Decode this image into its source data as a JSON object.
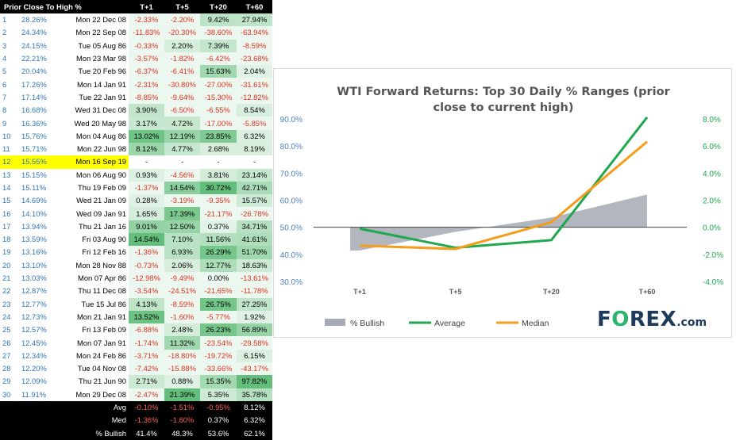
{
  "table": {
    "headers": [
      "Prior Close To High %",
      "T+1",
      "T+5",
      "T+20",
      "T+60"
    ],
    "highlight_row": 12,
    "rows": [
      {
        "n": "1",
        "pct": "28.26%",
        "date": "Mon 22 Dec 08",
        "t1": "-2.33%",
        "t5": "-2.20%",
        "t20": "9.42%",
        "t60": "27.94%"
      },
      {
        "n": "2",
        "pct": "24.34%",
        "date": "Mon 22 Sep 08",
        "t1": "-11.83%",
        "t5": "-20.30%",
        "t20": "-38.60%",
        "t60": "-63.94%"
      },
      {
        "n": "3",
        "pct": "24.15%",
        "date": "Tue 05 Aug 86",
        "t1": "-0.33%",
        "t5": "2.20%",
        "t20": "7.39%",
        "t60": "-8.59%"
      },
      {
        "n": "4",
        "pct": "22.21%",
        "date": "Mon 23 Mar 98",
        "t1": "-3.57%",
        "t5": "-1.82%",
        "t20": "-6.42%",
        "t60": "-23.68%"
      },
      {
        "n": "5",
        "pct": "20.04%",
        "date": "Tue 20 Feb 96",
        "t1": "-6.37%",
        "t5": "-6.41%",
        "t20": "15.63%",
        "t60": "2.04%"
      },
      {
        "n": "6",
        "pct": "17.26%",
        "date": "Mon 14 Jan 91",
        "t1": "-2.31%",
        "t5": "-30.80%",
        "t20": "-27.00%",
        "t60": "-31.61%"
      },
      {
        "n": "7",
        "pct": "17.14%",
        "date": "Tue 22 Jan 91",
        "t1": "-8.85%",
        "t5": "-9.64%",
        "t20": "-15.30%",
        "t60": "-12.82%"
      },
      {
        "n": "8",
        "pct": "16.68%",
        "date": "Wed 31 Dec 08",
        "t1": "3.90%",
        "t5": "-6.50%",
        "t20": "-6.55%",
        "t60": "8.54%"
      },
      {
        "n": "9",
        "pct": "16.36%",
        "date": "Wed 20 May 98",
        "t1": "3.17%",
        "t5": "4.72%",
        "t20": "-17.00%",
        "t60": "-5.85%"
      },
      {
        "n": "10",
        "pct": "15.76%",
        "date": "Mon 04 Aug 86",
        "t1": "13.02%",
        "t5": "12.19%",
        "t20": "23.85%",
        "t60": "6.32%"
      },
      {
        "n": "11",
        "pct": "15.71%",
        "date": "Mon 22 Jun 98",
        "t1": "8.12%",
        "t5": "4.77%",
        "t20": "2.68%",
        "t60": "8.19%"
      },
      {
        "n": "12",
        "pct": "15.55%",
        "date": "Mon 16 Sep 19",
        "t1": "-",
        "t5": "-",
        "t20": "-",
        "t60": "-"
      },
      {
        "n": "13",
        "pct": "15.15%",
        "date": "Mon 06 Aug 90",
        "t1": "0.93%",
        "t5": "-4.56%",
        "t20": "3.81%",
        "t60": "23.14%"
      },
      {
        "n": "14",
        "pct": "15.11%",
        "date": "Thu 19 Feb 09",
        "t1": "-1.37%",
        "t5": "14.54%",
        "t20": "30.72%",
        "t60": "42.71%"
      },
      {
        "n": "15",
        "pct": "14.69%",
        "date": "Wed 21 Jan 09",
        "t1": "0.28%",
        "t5": "-3.19%",
        "t20": "-9.35%",
        "t60": "15.57%"
      },
      {
        "n": "16",
        "pct": "14.10%",
        "date": "Wed 09 Jan 91",
        "t1": "1.65%",
        "t5": "17.39%",
        "t20": "-21.17%",
        "t60": "-26.78%"
      },
      {
        "n": "17",
        "pct": "13.94%",
        "date": "Thu 21 Jan 16",
        "t1": "9.01%",
        "t5": "12.50%",
        "t20": "0.37%",
        "t60": "34.71%"
      },
      {
        "n": "18",
        "pct": "13.59%",
        "date": "Fri 03 Aug 90",
        "t1": "14.54%",
        "t5": "7.10%",
        "t20": "11.56%",
        "t60": "41.61%"
      },
      {
        "n": "19",
        "pct": "13.16%",
        "date": "Fri 12 Feb 16",
        "t1": "-1.36%",
        "t5": "6.93%",
        "t20": "26.29%",
        "t60": "51.70%"
      },
      {
        "n": "20",
        "pct": "13.10%",
        "date": "Mon 28 Nov 88",
        "t1": "-0.73%",
        "t5": "2.06%",
        "t20": "12.77%",
        "t60": "18.63%"
      },
      {
        "n": "21",
        "pct": "13.03%",
        "date": "Mon 07 Apr 86",
        "t1": "-12.98%",
        "t5": "-9.49%",
        "t20": "0.00%",
        "t60": "-13.61%"
      },
      {
        "n": "22",
        "pct": "12.87%",
        "date": "Thu 11 Dec 08",
        "t1": "-3.54%",
        "t5": "-24.51%",
        "t20": "-21.65%",
        "t60": "-11.78%"
      },
      {
        "n": "23",
        "pct": "12.77%",
        "date": "Tue 15 Jul 86",
        "t1": "4.13%",
        "t5": "-8.59%",
        "t20": "26.75%",
        "t60": "27.25%"
      },
      {
        "n": "24",
        "pct": "12.73%",
        "date": "Mon 21 Jan 91",
        "t1": "13.52%",
        "t5": "-1.60%",
        "t20": "-5.77%",
        "t60": "1.92%"
      },
      {
        "n": "25",
        "pct": "12.57%",
        "date": "Fri 13 Feb 09",
        "t1": "-6.88%",
        "t5": "2.48%",
        "t20": "26.23%",
        "t60": "56.89%"
      },
      {
        "n": "26",
        "pct": "12.45%",
        "date": "Mon 07 Jan 91",
        "t1": "-1.74%",
        "t5": "11.32%",
        "t20": "-23.54%",
        "t60": "-29.58%"
      },
      {
        "n": "27",
        "pct": "12.34%",
        "date": "Mon 24 Feb 86",
        "t1": "-3.71%",
        "t5": "-18.80%",
        "t20": "-19.72%",
        "t60": "6.15%"
      },
      {
        "n": "28",
        "pct": "12.20%",
        "date": "Tue 04 Nov 08",
        "t1": "-7.42%",
        "t5": "-15.88%",
        "t20": "-33.66%",
        "t60": "-43.17%"
      },
      {
        "n": "29",
        "pct": "12.09%",
        "date": "Thu 21 Jun 90",
        "t1": "2.71%",
        "t5": "0.88%",
        "t20": "15.35%",
        "t60": "97.82%"
      },
      {
        "n": "30",
        "pct": "11.91%",
        "date": "Mon 29 Dec 08",
        "t1": "-2.47%",
        "t5": "21.39%",
        "t20": "5.35%",
        "t60": "35.78%"
      }
    ],
    "summary": [
      {
        "label": "Avg",
        "t1": "-0.10%",
        "t5": "-1.51%",
        "t20": "-0.95%",
        "t60": "8.12%"
      },
      {
        "label": "Med",
        "t1": "-1.36%",
        "t5": "-1.60%",
        "t20": "0.37%",
        "t60": "6.32%"
      },
      {
        "label": "% Bullish",
        "t1": "41.4%",
        "t5": "48.3%",
        "t20": "53.6%",
        "t60": "62.1%"
      }
    ]
  },
  "colors": {
    "green_bar": "#63be7b",
    "bullish_area": "#a5aab4",
    "average_line": "#1fa84d",
    "median_line": "#f59c1a",
    "negative_text": "#e03020",
    "left_axis_text": "#4f81bd",
    "right_axis_text": "#1fa84d"
  },
  "chart_data": {
    "type": "line",
    "title": "WTI Forward Returns: Top 30 Daily % Ranges (prior close to current high)",
    "categories": [
      "T+1",
      "T+5",
      "T+20",
      "T+60"
    ],
    "series": [
      {
        "name": "% Bullish",
        "kind": "area",
        "axis": "left",
        "values": [
          41.4,
          48.3,
          53.6,
          62.1
        ]
      },
      {
        "name": "Average",
        "kind": "line",
        "axis": "right",
        "values": [
          -0.1,
          -1.51,
          -0.95,
          8.12
        ]
      },
      {
        "name": "Median",
        "kind": "line",
        "axis": "right",
        "values": [
          -1.36,
          -1.6,
          0.37,
          6.32
        ]
      }
    ],
    "left_axis": {
      "min": 30,
      "max": 90,
      "step": 10,
      "format": "percent1"
    },
    "right_axis": {
      "min": -4,
      "max": 8,
      "step": 2,
      "format": "percent1"
    },
    "area_baseline": 50,
    "legend": "bottom",
    "grid": false
  },
  "logo": {
    "main_pre": "F",
    "main_o": "O",
    "main_post": "REX",
    "suffix": ".com"
  }
}
